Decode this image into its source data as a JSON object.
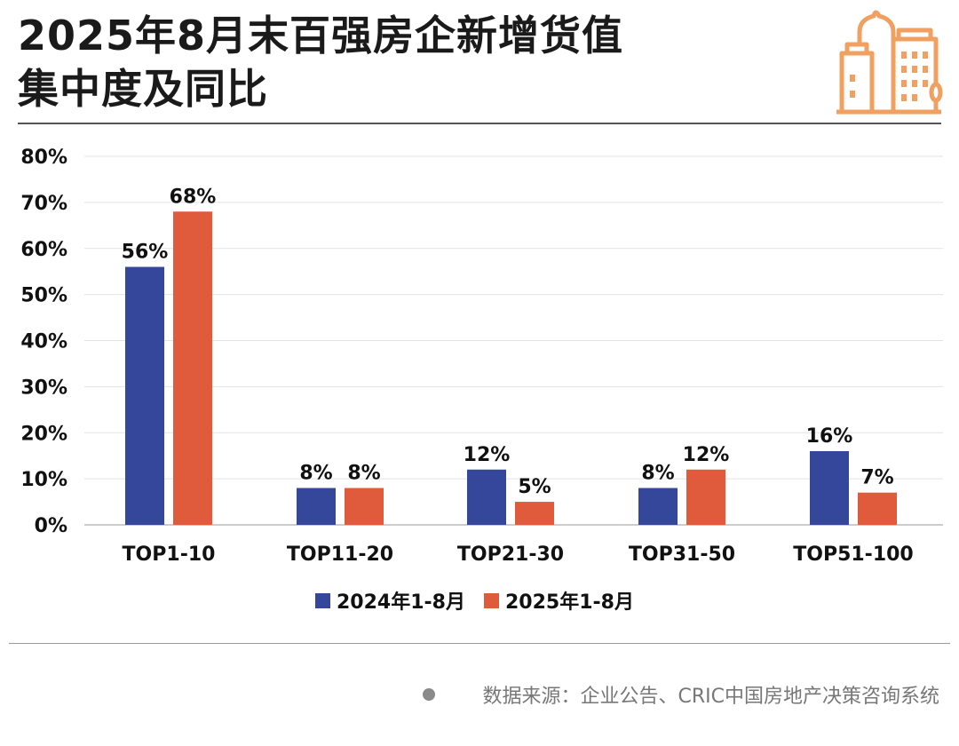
{
  "title_line1": "2025年8月末百强房企新增货值",
  "title_line2": "集中度及同比",
  "source": "数据来源：企业公告、CRIC中国房地产决策咨询系统",
  "colors": {
    "series_2024": "#34479a",
    "series_2025": "#e05a3c",
    "icon": "#f0a060"
  },
  "chart_data": {
    "type": "bar",
    "title": "2025年8月末百强房企新增货值集中度及同比",
    "xlabel": "",
    "ylabel": "",
    "ylim": [
      0,
      80
    ],
    "yticks": [
      "0%",
      "10%",
      "20%",
      "30%",
      "40%",
      "50%",
      "60%",
      "70%",
      "80%"
    ],
    "grid": true,
    "legend_position": "bottom",
    "categories": [
      "TOP1-10",
      "TOP11-20",
      "TOP21-30",
      "TOP31-50",
      "TOP51-100"
    ],
    "series": [
      {
        "name": "2024年1-8月",
        "values": [
          56,
          8,
          12,
          8,
          16
        ],
        "labels": [
          "56%",
          "8%",
          "12%",
          "8%",
          "16%"
        ]
      },
      {
        "name": "2025年1-8月",
        "values": [
          68,
          8,
          5,
          12,
          7
        ],
        "labels": [
          "68%",
          "8%",
          "5%",
          "12%",
          "7%"
        ]
      }
    ]
  }
}
